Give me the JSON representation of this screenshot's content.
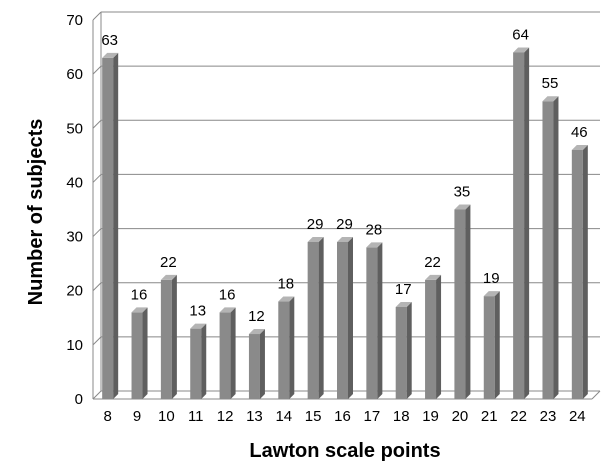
{
  "chart_data": {
    "type": "bar",
    "title": "",
    "xlabel": "Lawton scale points",
    "ylabel": "Number of subjects",
    "ylim": [
      0,
      70
    ],
    "yticks": [
      0,
      10,
      20,
      30,
      40,
      50,
      60,
      70
    ],
    "grid": true,
    "legend": "none",
    "categories": [
      "8",
      "9",
      "10",
      "11",
      "12",
      "13",
      "14",
      "15",
      "16",
      "17",
      "18",
      "19",
      "20",
      "21",
      "22",
      "23",
      "24"
    ],
    "values": [
      63,
      16,
      22,
      13,
      16,
      12,
      18,
      29,
      29,
      28,
      17,
      22,
      35,
      19,
      64,
      55,
      46
    ],
    "colors": {
      "bar_front": "#8a8a8a",
      "bar_side": "#5f5f5f",
      "bar_top": "#b4b4b4",
      "gridline": "#888888",
      "axis": "#888888"
    }
  }
}
